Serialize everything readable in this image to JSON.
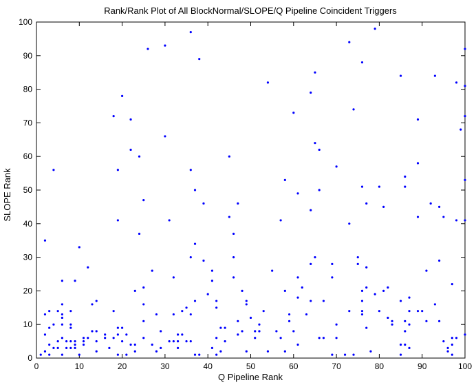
{
  "chart_data": {
    "type": "scatter",
    "title": "Rank/Rank Plot of All BlockNormal/SLOPE/Q Pipeline Coincident Triggers",
    "xlabel": "Q Pipeline Rank",
    "ylabel": "SLOPE Rank",
    "xlim": [
      0,
      100
    ],
    "ylim": [
      0,
      100
    ],
    "xticks": [
      0,
      10,
      20,
      30,
      40,
      50,
      60,
      70,
      80,
      90,
      100
    ],
    "yticks": [
      0,
      10,
      20,
      30,
      40,
      50,
      60,
      70,
      80,
      90,
      100
    ],
    "grid": false,
    "marker_color": "#0000ff",
    "series": [
      {
        "points": [
          [
            1,
            1
          ],
          [
            2,
            35
          ],
          [
            2,
            13
          ],
          [
            2,
            7
          ],
          [
            2,
            2
          ],
          [
            3,
            14
          ],
          [
            3,
            9
          ],
          [
            3,
            4
          ],
          [
            3,
            1
          ],
          [
            4,
            56
          ],
          [
            4,
            10
          ],
          [
            4,
            3
          ],
          [
            5,
            14
          ],
          [
            5,
            5
          ],
          [
            5,
            3
          ],
          [
            6,
            23
          ],
          [
            6,
            16
          ],
          [
            6,
            13
          ],
          [
            6,
            12
          ],
          [
            6,
            10
          ],
          [
            6,
            6
          ],
          [
            6,
            1
          ],
          [
            7,
            5
          ],
          [
            7,
            3
          ],
          [
            8,
            14
          ],
          [
            8,
            10
          ],
          [
            8,
            9
          ],
          [
            8,
            5
          ],
          [
            8,
            3
          ],
          [
            9,
            23
          ],
          [
            9,
            5
          ],
          [
            9,
            3
          ],
          [
            9,
            4
          ],
          [
            10,
            33
          ],
          [
            10,
            1
          ],
          [
            11,
            6
          ],
          [
            11,
            5
          ],
          [
            11,
            4
          ],
          [
            12,
            27
          ],
          [
            12,
            6
          ],
          [
            13,
            16
          ],
          [
            13,
            8
          ],
          [
            14,
            17
          ],
          [
            14,
            8
          ],
          [
            14,
            5
          ],
          [
            14,
            2
          ],
          [
            16,
            6
          ],
          [
            16,
            7
          ],
          [
            17,
            3
          ],
          [
            18,
            72
          ],
          [
            18,
            14
          ],
          [
            18,
            6
          ],
          [
            19,
            56
          ],
          [
            19,
            41
          ],
          [
            19,
            9
          ],
          [
            19,
            7
          ],
          [
            19,
            1
          ],
          [
            20,
            78
          ],
          [
            20,
            9
          ],
          [
            20,
            5
          ],
          [
            21,
            7
          ],
          [
            21,
            1
          ],
          [
            22,
            71
          ],
          [
            22,
            62
          ],
          [
            22,
            4
          ],
          [
            23,
            20
          ],
          [
            23,
            4
          ],
          [
            23,
            2
          ],
          [
            24,
            60
          ],
          [
            24,
            37
          ],
          [
            25,
            47
          ],
          [
            25,
            21
          ],
          [
            25,
            16
          ],
          [
            25,
            11
          ],
          [
            25,
            6
          ],
          [
            26,
            92
          ],
          [
            27,
            26
          ],
          [
            27,
            4
          ],
          [
            28,
            13
          ],
          [
            28,
            2
          ],
          [
            29,
            8
          ],
          [
            29,
            3
          ],
          [
            30,
            93
          ],
          [
            30,
            66
          ],
          [
            31,
            41
          ],
          [
            31,
            5
          ],
          [
            32,
            24
          ],
          [
            32,
            13
          ],
          [
            32,
            5
          ],
          [
            33,
            7
          ],
          [
            33,
            5
          ],
          [
            33,
            3
          ],
          [
            34,
            14
          ],
          [
            34,
            7
          ],
          [
            35,
            15
          ],
          [
            35,
            5
          ],
          [
            36,
            97
          ],
          [
            36,
            56
          ],
          [
            36,
            30
          ],
          [
            36,
            13
          ],
          [
            36,
            5
          ],
          [
            37,
            50
          ],
          [
            37,
            34
          ],
          [
            37,
            17
          ],
          [
            37,
            1
          ],
          [
            38,
            89
          ],
          [
            38,
            1
          ],
          [
            39,
            46
          ],
          [
            39,
            29
          ],
          [
            40,
            19
          ],
          [
            41,
            26
          ],
          [
            41,
            23
          ],
          [
            41,
            3
          ],
          [
            42,
            17
          ],
          [
            42,
            15
          ],
          [
            42,
            6
          ],
          [
            42,
            1
          ],
          [
            43,
            9
          ],
          [
            43,
            2
          ],
          [
            44,
            9
          ],
          [
            44,
            5
          ],
          [
            45,
            60
          ],
          [
            45,
            42
          ],
          [
            46,
            37
          ],
          [
            46,
            30
          ],
          [
            46,
            24
          ],
          [
            47,
            46
          ],
          [
            47,
            11
          ],
          [
            47,
            7
          ],
          [
            48,
            20
          ],
          [
            48,
            8
          ],
          [
            49,
            17
          ],
          [
            49,
            16
          ],
          [
            49,
            2
          ],
          [
            50,
            12
          ],
          [
            51,
            8
          ],
          [
            51,
            6
          ],
          [
            52,
            10
          ],
          [
            52,
            8
          ],
          [
            53,
            14
          ],
          [
            54,
            82
          ],
          [
            54,
            2
          ],
          [
            55,
            26
          ],
          [
            56,
            8
          ],
          [
            57,
            41
          ],
          [
            57,
            6
          ],
          [
            58,
            53
          ],
          [
            58,
            20
          ],
          [
            58,
            2
          ],
          [
            59,
            13
          ],
          [
            59,
            11
          ],
          [
            60,
            73
          ],
          [
            60,
            8
          ],
          [
            61,
            49
          ],
          [
            61,
            24
          ],
          [
            61,
            18
          ],
          [
            61,
            4
          ],
          [
            62,
            21
          ],
          [
            63,
            13
          ],
          [
            64,
            79
          ],
          [
            64,
            44
          ],
          [
            64,
            28
          ],
          [
            64,
            17
          ],
          [
            65,
            85
          ],
          [
            65,
            64
          ],
          [
            65,
            30
          ],
          [
            66,
            62
          ],
          [
            66,
            50
          ],
          [
            66,
            6
          ],
          [
            67,
            17
          ],
          [
            67,
            6
          ],
          [
            69,
            28
          ],
          [
            69,
            24
          ],
          [
            69,
            1
          ],
          [
            70,
            57
          ],
          [
            70,
            10
          ],
          [
            70,
            6
          ],
          [
            72,
            1
          ],
          [
            73,
            94
          ],
          [
            73,
            40
          ],
          [
            73,
            14
          ],
          [
            74,
            74
          ],
          [
            74,
            1
          ],
          [
            75,
            30
          ],
          [
            75,
            28
          ],
          [
            76,
            88
          ],
          [
            76,
            51
          ],
          [
            76,
            20
          ],
          [
            76,
            17
          ],
          [
            76,
            14
          ],
          [
            76,
            13
          ],
          [
            77,
            46
          ],
          [
            77,
            27
          ],
          [
            77,
            21
          ],
          [
            77,
            9
          ],
          [
            78,
            2
          ],
          [
            79,
            98
          ],
          [
            79,
            19
          ],
          [
            80,
            51
          ],
          [
            80,
            14
          ],
          [
            81,
            45
          ],
          [
            81,
            20
          ],
          [
            82,
            21
          ],
          [
            82,
            12
          ],
          [
            83,
            11
          ],
          [
            83,
            10
          ],
          [
            85,
            84
          ],
          [
            85,
            17
          ],
          [
            85,
            4
          ],
          [
            85,
            1
          ],
          [
            86,
            54
          ],
          [
            86,
            51
          ],
          [
            86,
            11
          ],
          [
            86,
            8
          ],
          [
            86,
            4
          ],
          [
            87,
            18
          ],
          [
            87,
            14
          ],
          [
            87,
            10
          ],
          [
            87,
            3
          ],
          [
            89,
            71
          ],
          [
            89,
            58
          ],
          [
            89,
            42
          ],
          [
            89,
            14
          ],
          [
            90,
            14
          ],
          [
            91,
            26
          ],
          [
            91,
            11
          ],
          [
            92,
            46
          ],
          [
            93,
            84
          ],
          [
            93,
            16
          ],
          [
            94,
            45
          ],
          [
            94,
            29
          ],
          [
            94,
            11
          ],
          [
            95,
            42
          ],
          [
            95,
            5
          ],
          [
            96,
            3
          ],
          [
            96,
            2
          ],
          [
            97,
            22
          ],
          [
            97,
            6
          ],
          [
            97,
            4
          ],
          [
            97,
            1
          ],
          [
            98,
            82
          ],
          [
            98,
            41
          ],
          [
            98,
            6
          ],
          [
            99,
            68
          ],
          [
            100,
            92
          ],
          [
            100,
            81
          ],
          [
            100,
            72
          ],
          [
            100,
            53
          ],
          [
            100,
            41
          ],
          [
            100,
            7
          ]
        ]
      }
    ]
  }
}
